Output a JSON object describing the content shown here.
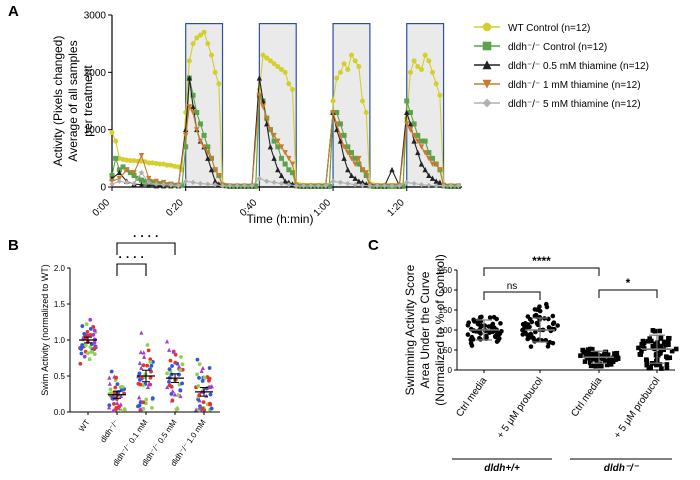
{
  "colors": {
    "wt": "#d4cf2c",
    "ko": "#5aa34a",
    "t05": "#222222",
    "t1": "#c97b2e",
    "t5": "#b0b0b0",
    "box": "#2e4f9e",
    "box_fill": "#d9d9d9"
  },
  "chart_data": [
    {
      "panel": "A",
      "type": "line",
      "ylabel_line1": "Activity (Pixels changed)",
      "ylabel_line2": "Average of all samples",
      "ylabel_line3": "per treatment",
      "xlabel": "Time (h:min)",
      "ylim": [
        0,
        3000
      ],
      "yticks": [
        0,
        1000,
        2000,
        3000
      ],
      "xlim": [
        0,
        95
      ],
      "xticks": [
        {
          "v": 0,
          "label": "0:00"
        },
        {
          "v": 20,
          "label": "0:20"
        },
        {
          "v": 40,
          "label": "0:40"
        },
        {
          "v": 60,
          "label": "1:00"
        },
        {
          "v": 80,
          "label": "1:20"
        }
      ],
      "light_periods": [
        [
          20,
          30
        ],
        [
          40,
          50
        ],
        [
          60,
          70
        ],
        [
          80,
          90
        ]
      ],
      "series": [
        {
          "key": "wt",
          "name": "WT Control (n=12)",
          "color": "#d4cf2c",
          "marker": "circle",
          "x": [
            0,
            1,
            2,
            3,
            4,
            5,
            6,
            7,
            8,
            9,
            10,
            11,
            12,
            13,
            14,
            15,
            16,
            17,
            18,
            19,
            20,
            21,
            22,
            23,
            24,
            25,
            26,
            27,
            28,
            29,
            30,
            31,
            32,
            33,
            34,
            35,
            36,
            37,
            38,
            39,
            40,
            41,
            42,
            43,
            44,
            45,
            46,
            47,
            48,
            49,
            50,
            51,
            52,
            53,
            54,
            55,
            56,
            57,
            58,
            59,
            60,
            61,
            62,
            63,
            64,
            65,
            66,
            67,
            68,
            69,
            70,
            71,
            72,
            73,
            74,
            75,
            76,
            77,
            78,
            79,
            80,
            81,
            82,
            83,
            84,
            85,
            86,
            87,
            88,
            89,
            90,
            91,
            92,
            93,
            94
          ],
          "y": [
            950,
            800,
            500,
            480,
            470,
            460,
            460,
            450,
            450,
            440,
            420,
            420,
            410,
            400,
            400,
            380,
            380,
            360,
            350,
            300,
            1300,
            2200,
            2500,
            2600,
            2650,
            2700,
            2500,
            2300,
            2000,
            1800,
            50,
            30,
            20,
            20,
            20,
            20,
            20,
            20,
            20,
            40,
            1700,
            2300,
            2250,
            2200,
            2150,
            2100,
            2050,
            2000,
            1800,
            1700,
            60,
            40,
            30,
            30,
            30,
            30,
            30,
            30,
            30,
            30,
            1500,
            1900,
            2000,
            2150,
            2050,
            2300,
            2200,
            2100,
            1500,
            1300,
            60,
            40,
            30,
            30,
            30,
            30,
            30,
            30,
            30,
            30,
            1200,
            2000,
            2200,
            2100,
            2050,
            2300,
            2200,
            2000,
            1800,
            1600,
            30,
            20,
            20,
            20,
            20
          ]
        },
        {
          "key": "ko",
          "name": "dldh⁻/⁻ Control (n=12)",
          "color": "#5aa34a",
          "marker": "square",
          "x": [
            0,
            1,
            2,
            3,
            4,
            5,
            6,
            7,
            8,
            9,
            10,
            11,
            12,
            13,
            14,
            15,
            16,
            17,
            18,
            19,
            20,
            21,
            22,
            23,
            24,
            25,
            26,
            27,
            28,
            29,
            30,
            31,
            32,
            33,
            34,
            35,
            36,
            37,
            38,
            39,
            40,
            41,
            42,
            43,
            44,
            45,
            46,
            47,
            48,
            49,
            50,
            51,
            52,
            53,
            54,
            55,
            56,
            57,
            58,
            59,
            60,
            61,
            62,
            63,
            64,
            65,
            66,
            67,
            68,
            69,
            70,
            71,
            72,
            73,
            74,
            75,
            76,
            77,
            78,
            79,
            80,
            81,
            82,
            83,
            84,
            85,
            86,
            87,
            88,
            89,
            90,
            91,
            92,
            93,
            94
          ],
          "y": [
            200,
            500,
            300,
            350,
            300,
            250,
            200,
            150,
            120,
            100,
            90,
            80,
            70,
            60,
            50,
            40,
            30,
            30,
            30,
            30,
            700,
            1900,
            1600,
            1300,
            1100,
            900,
            700,
            500,
            300,
            200,
            30,
            20,
            10,
            10,
            10,
            10,
            10,
            10,
            10,
            10,
            1600,
            1500,
            1200,
            1000,
            800,
            700,
            500,
            400,
            300,
            250,
            20,
            10,
            10,
            10,
            10,
            10,
            10,
            10,
            10,
            10,
            1300,
            1300,
            1100,
            900,
            700,
            600,
            500,
            400,
            300,
            200,
            20,
            10,
            10,
            10,
            10,
            10,
            10,
            10,
            10,
            10,
            1500,
            1300,
            1100,
            900,
            800,
            800,
            600,
            500,
            400,
            300,
            20,
            10,
            10,
            10,
            10
          ]
        },
        {
          "key": "t05",
          "name": "dldh⁻/⁻ 0.5 mM thiamine (n=12)",
          "color": "#222222",
          "marker": "triangle",
          "x": [
            0,
            2,
            4,
            6,
            8,
            10,
            12,
            14,
            16,
            18,
            20,
            21,
            22,
            23,
            24,
            25,
            26,
            27,
            28,
            29,
            30,
            32,
            34,
            36,
            38,
            40,
            41,
            42,
            43,
            44,
            45,
            46,
            47,
            48,
            49,
            50,
            52,
            54,
            56,
            58,
            60,
            61,
            62,
            63,
            64,
            65,
            66,
            67,
            68,
            69,
            70,
            72,
            74,
            76,
            78,
            80,
            81,
            82,
            83,
            84,
            85,
            86,
            87,
            88,
            89,
            90,
            92,
            94
          ],
          "y": [
            150,
            250,
            100,
            50,
            40,
            30,
            20,
            20,
            20,
            20,
            1000,
            1900,
            1400,
            1000,
            800,
            700,
            500,
            300,
            100,
            50,
            30,
            20,
            20,
            20,
            20,
            1900,
            1500,
            1100,
            700,
            500,
            300,
            200,
            100,
            80,
            50,
            30,
            20,
            20,
            20,
            20,
            1300,
            1000,
            800,
            500,
            300,
            200,
            150,
            100,
            80,
            50,
            40,
            20,
            20,
            300,
            20,
            1300,
            1100,
            800,
            600,
            400,
            300,
            200,
            150,
            100,
            80,
            30,
            20,
            20
          ]
        },
        {
          "key": "t1",
          "name": "dldh⁻/⁻ 1 mM thiamine (n=12)",
          "color": "#c97b2e",
          "marker": "triangle-down",
          "x": [
            0,
            2,
            4,
            6,
            8,
            10,
            12,
            14,
            16,
            18,
            20,
            21,
            22,
            23,
            24,
            25,
            26,
            27,
            28,
            29,
            30,
            32,
            34,
            36,
            38,
            40,
            41,
            42,
            43,
            44,
            45,
            46,
            47,
            48,
            49,
            50,
            52,
            54,
            56,
            58,
            60,
            61,
            62,
            63,
            64,
            65,
            66,
            67,
            68,
            69,
            70,
            72,
            74,
            76,
            78,
            80,
            81,
            82,
            83,
            84,
            85,
            86,
            87,
            88,
            89,
            90,
            92,
            94
          ],
          "y": [
            100,
            150,
            300,
            250,
            550,
            150,
            100,
            80,
            50,
            30,
            900,
            1400,
            1300,
            1000,
            800,
            700,
            600,
            500,
            300,
            200,
            30,
            20,
            20,
            20,
            20,
            1600,
            1400,
            1200,
            1000,
            900,
            800,
            700,
            600,
            500,
            400,
            30,
            20,
            20,
            20,
            20,
            1300,
            1100,
            900,
            700,
            600,
            500,
            400,
            500,
            300,
            250,
            30,
            20,
            20,
            20,
            20,
            1100,
            1000,
            900,
            800,
            700,
            600,
            500,
            400,
            400,
            300,
            30,
            20,
            20
          ]
        },
        {
          "key": "t5",
          "name": "dldh⁻/⁻ 5 mM thiamine (n=12)",
          "color": "#b0b0b0",
          "marker": "diamond",
          "x": [
            0,
            2,
            4,
            6,
            8,
            10,
            12,
            14,
            16,
            18,
            20,
            22,
            24,
            26,
            28,
            30,
            32,
            34,
            36,
            38,
            40,
            42,
            44,
            46,
            48,
            50,
            52,
            54,
            56,
            58,
            60,
            62,
            64,
            66,
            68,
            70,
            72,
            74,
            76,
            78,
            80,
            82,
            84,
            86,
            88,
            90,
            92,
            94
          ],
          "y": [
            50,
            100,
            80,
            60,
            250,
            80,
            50,
            40,
            30,
            20,
            100,
            80,
            60,
            50,
            40,
            20,
            20,
            20,
            20,
            20,
            150,
            100,
            80,
            60,
            40,
            20,
            20,
            20,
            20,
            20,
            100,
            80,
            60,
            40,
            30,
            20,
            20,
            20,
            20,
            20,
            80,
            60,
            40,
            30,
            20,
            20,
            20,
            20
          ]
        }
      ]
    },
    {
      "panel": "B",
      "type": "scatter",
      "ylabel": "Swim Activity (normalized to WT)",
      "ylim": [
        0,
        2.0
      ],
      "yticks": [
        "0.0",
        "0.5",
        "1.0",
        "1.5",
        "2.0"
      ],
      "categories": [
        "WT",
        "dldh⁻/⁻",
        "dldh⁻/⁻ 0.1 mM",
        "dldh⁻/⁻ 0.5 mM",
        "dldh⁻/⁻ 1.0 mM"
      ],
      "means": [
        1.0,
        0.24,
        0.5,
        0.47,
        0.28
      ],
      "sem": [
        0.04,
        0.05,
        0.08,
        0.06,
        0.06
      ],
      "significance": [
        {
          "from": 1,
          "to": 3,
          "label": "· · · ·"
        },
        {
          "from": 1,
          "to": 2,
          "label": "· · · ·"
        }
      ]
    },
    {
      "panel": "C",
      "type": "scatter",
      "ylabel_line1": "Swimming Activity Score",
      "ylabel_line2": "Area Under the Curve",
      "ylabel_line3": "(Normalized to % of Control)",
      "ylim": [
        0,
        250
      ],
      "yticks": [
        0,
        50,
        100,
        150,
        200,
        250
      ],
      "categories": [
        "Ctrl media",
        "+ 5 μM probucol",
        "Ctrl media",
        "+ 5 μM probucol"
      ],
      "groups": [
        "dldh+/+",
        "dldh⁻/⁻"
      ],
      "means": [
        100,
        100,
        32,
        52
      ],
      "sd": [
        25,
        30,
        15,
        35
      ],
      "significance": [
        {
          "from": 0,
          "to": 1,
          "label": "ns"
        },
        {
          "from": 0,
          "to": 2,
          "label": "****"
        },
        {
          "from": 2,
          "to": 3,
          "label": "*"
        }
      ]
    }
  ]
}
